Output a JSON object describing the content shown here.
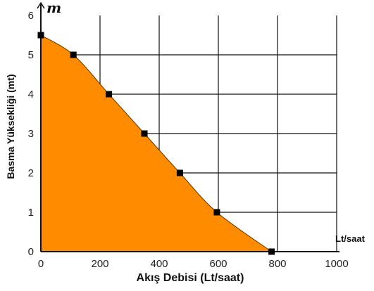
{
  "chart_data": {
    "type": "area",
    "x": [
      0,
      110,
      230,
      350,
      470,
      595,
      780
    ],
    "y": [
      5.5,
      5,
      4,
      3,
      2,
      1,
      0
    ],
    "xlim": [
      0,
      1000
    ],
    "ylim": [
      0,
      6
    ],
    "xticks": [
      "0",
      "200",
      "400",
      "600",
      "800",
      "1000"
    ],
    "yticks": [
      "0",
      "1",
      "2",
      "3",
      "4",
      "5",
      "6"
    ],
    "xlabel": "Akış Debisi  (Lt/saat)",
    "ylabel": "Basma Yüksekliği (mt)",
    "x_unit": "Lt/saat",
    "y_unit": "m",
    "grid": true,
    "fill_color": "#FF8C00",
    "marker_color": "#000000"
  }
}
